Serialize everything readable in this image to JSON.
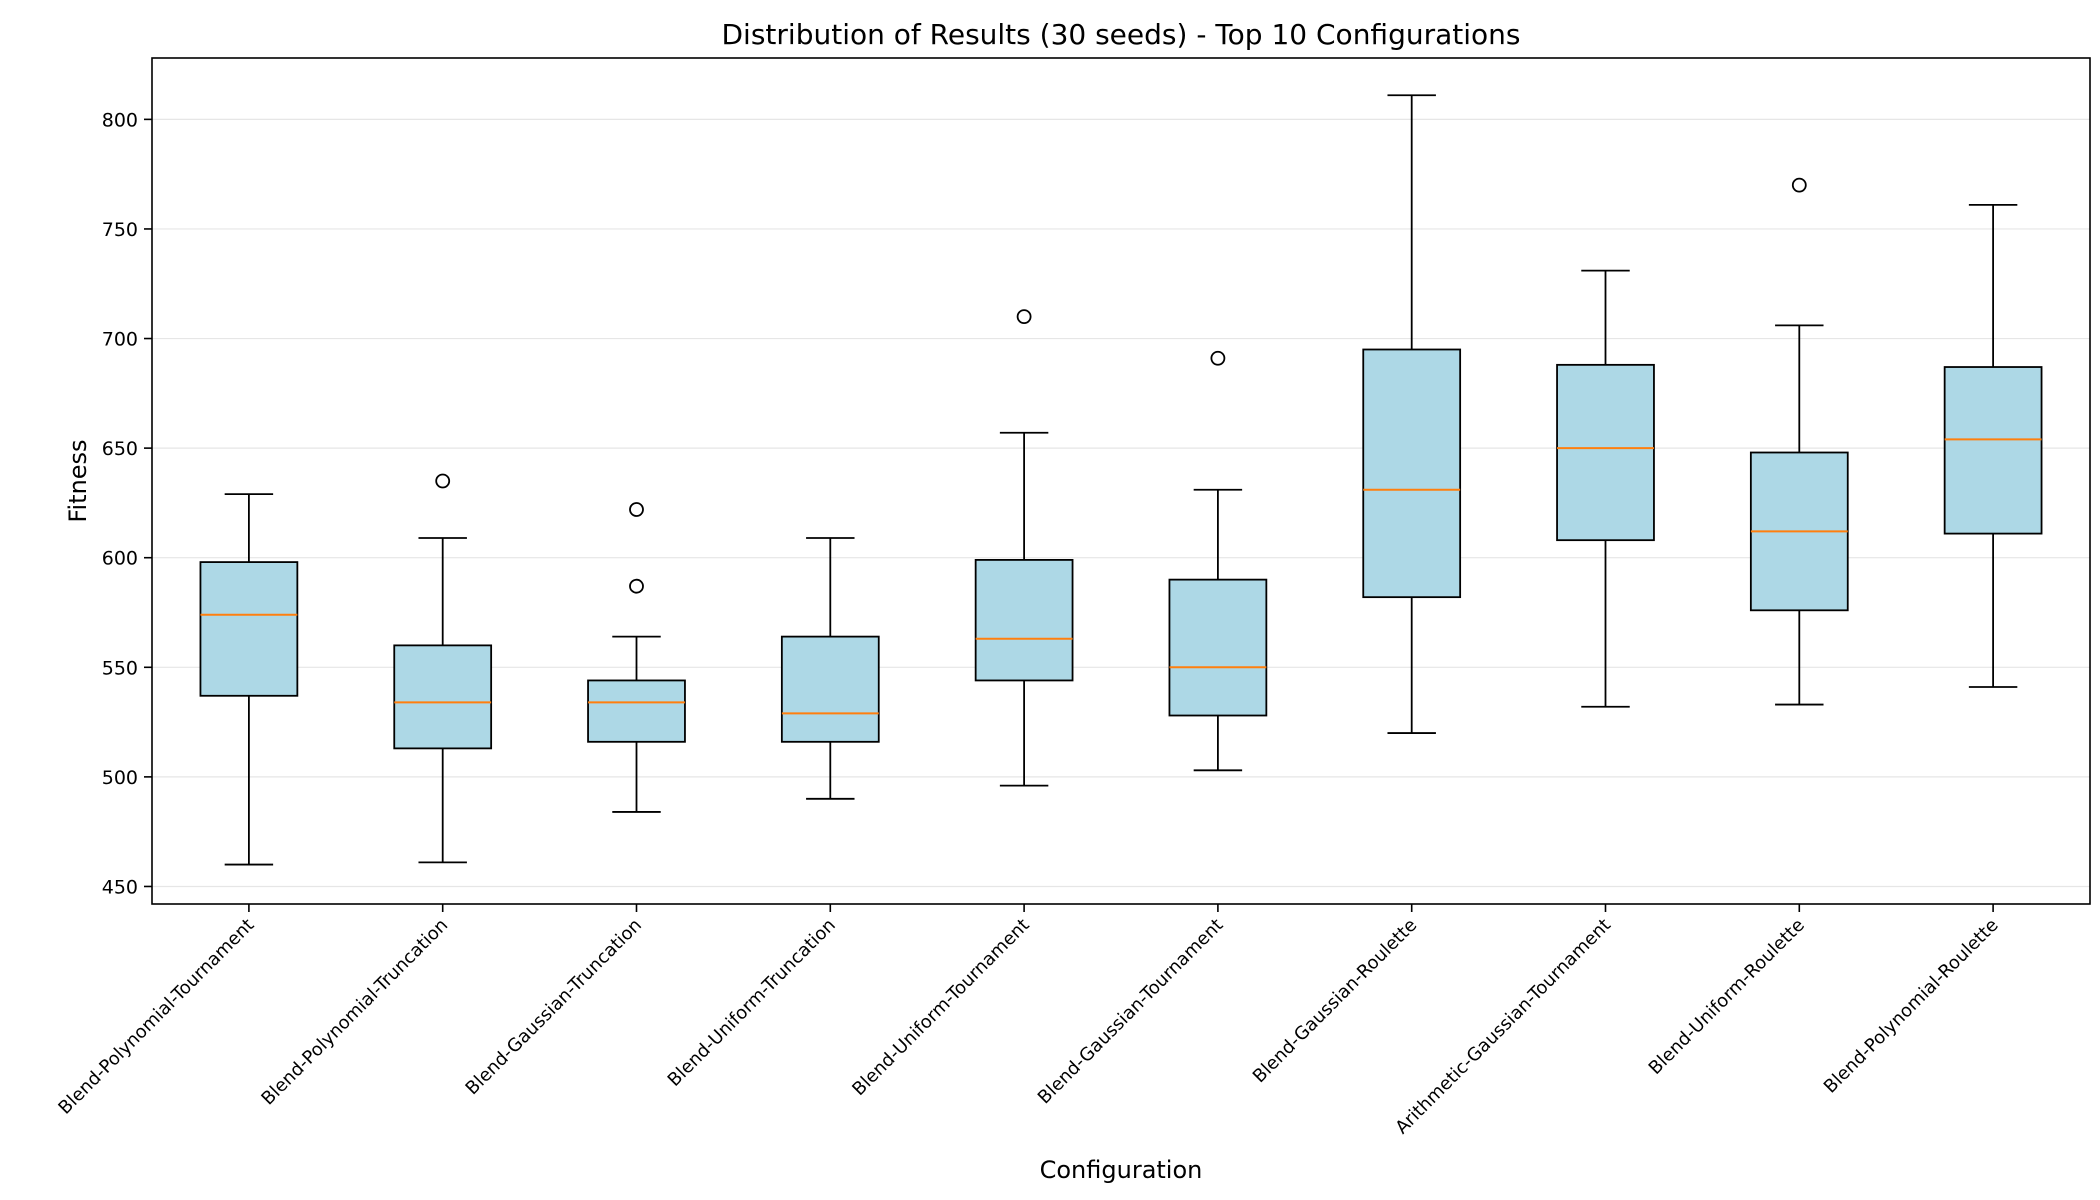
{
  "chart_data": {
    "type": "box",
    "title": "Distribution of Results (30 seeds) - Top 10 Configurations",
    "xlabel": "Configuration",
    "ylabel": "Fitness",
    "ylim": [
      442,
      828
    ],
    "yticks": [
      450,
      500,
      550,
      600,
      650,
      700,
      750,
      800
    ],
    "grid": "y",
    "colors": {
      "box_fill": "#add8e6",
      "median": "#ff7f0e",
      "line": "#000000",
      "grid": "#e6e6e6"
    },
    "series": [
      {
        "label": "Blend-Polynomial-Tournament",
        "whisker_low": 460,
        "q1": 537,
        "median": 574,
        "q3": 598,
        "whisker_high": 629,
        "outliers": []
      },
      {
        "label": "Blend-Polynomial-Truncation",
        "whisker_low": 461,
        "q1": 513,
        "median": 534,
        "q3": 560,
        "whisker_high": 609,
        "outliers": [
          635
        ]
      },
      {
        "label": "Blend-Gaussian-Truncation",
        "whisker_low": 484,
        "q1": 516,
        "median": 534,
        "q3": 544,
        "whisker_high": 564,
        "outliers": [
          587,
          622
        ]
      },
      {
        "label": "Blend-Uniform-Truncation",
        "whisker_low": 490,
        "q1": 516,
        "median": 529,
        "q3": 564,
        "whisker_high": 609,
        "outliers": []
      },
      {
        "label": "Blend-Uniform-Tournament",
        "whisker_low": 496,
        "q1": 544,
        "median": 563,
        "q3": 599,
        "whisker_high": 657,
        "outliers": [
          710
        ]
      },
      {
        "label": "Blend-Gaussian-Tournament",
        "whisker_low": 503,
        "q1": 528,
        "median": 550,
        "q3": 590,
        "whisker_high": 631,
        "outliers": [
          691
        ]
      },
      {
        "label": "Blend-Gaussian-Roulette",
        "whisker_low": 520,
        "q1": 582,
        "median": 631,
        "q3": 695,
        "whisker_high": 811,
        "outliers": []
      },
      {
        "label": "Arithmetic-Gaussian-Tournament",
        "whisker_low": 532,
        "q1": 608,
        "median": 650,
        "q3": 688,
        "whisker_high": 731,
        "outliers": []
      },
      {
        "label": "Blend-Uniform-Roulette",
        "whisker_low": 533,
        "q1": 576,
        "median": 612,
        "q3": 648,
        "whisker_high": 706,
        "outliers": [
          770
        ]
      },
      {
        "label": "Blend-Polynomial-Roulette",
        "whisker_low": 541,
        "q1": 611,
        "median": 654,
        "q3": 687,
        "whisker_high": 761,
        "outliers": []
      }
    ]
  }
}
